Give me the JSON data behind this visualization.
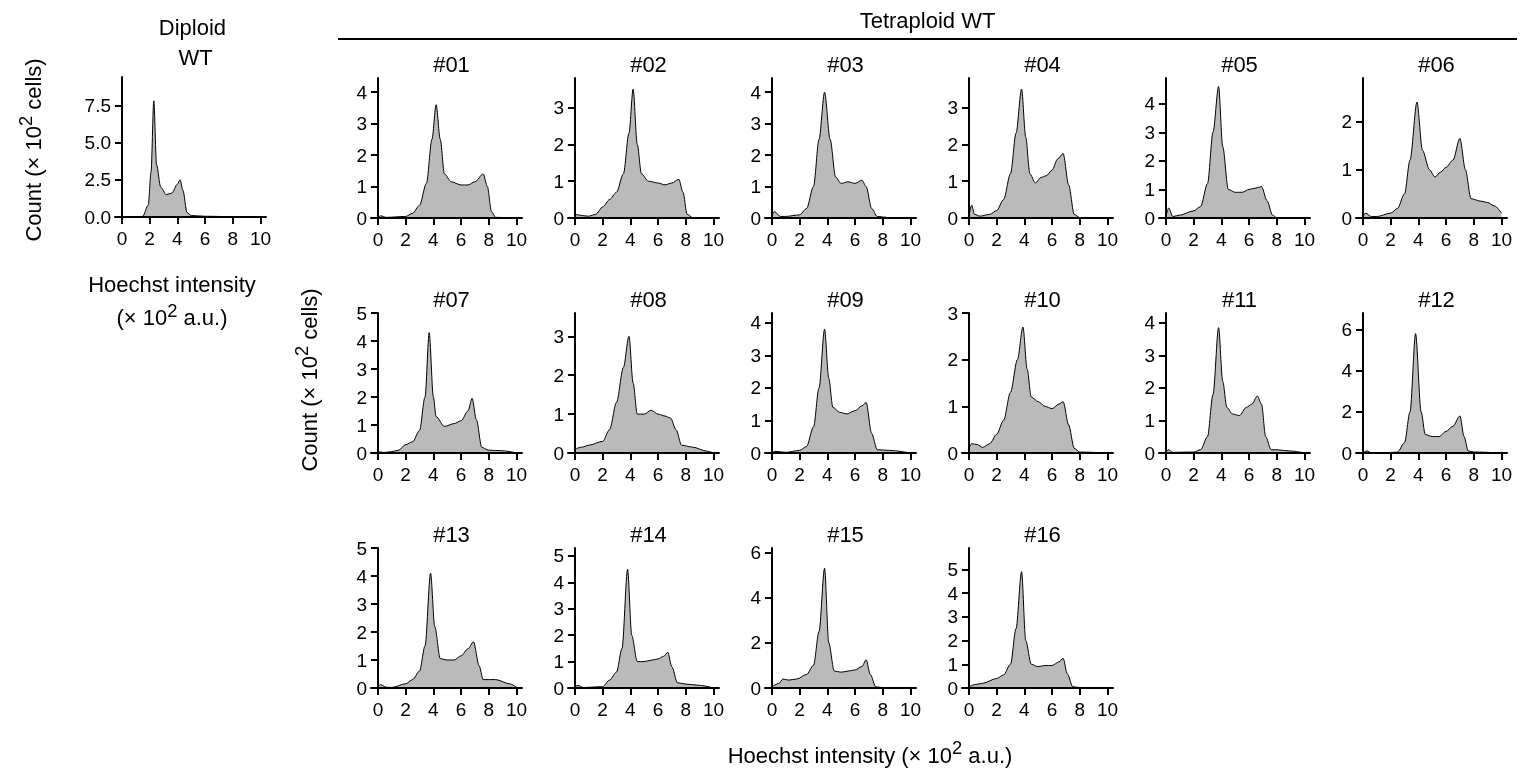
{
  "chart_data": [
    {
      "type": "area",
      "title": "Diploid WT",
      "xlabel": "Hoechst intensity (× 10$^{2}$ a.u.)",
      "ylabel": "Count (× 10$^{2}$ cells)",
      "color": "#000000",
      "xlim": [
        -0.5,
        10.4
      ],
      "xticks": [
        0,
        2,
        4,
        6,
        8,
        10
      ],
      "ylim": [
        0,
        9.4
      ],
      "yticks": [
        {
          "value": 0,
          "label": "0.0"
        },
        {
          "value": 2.5,
          "label": "2.5"
        },
        {
          "value": 5,
          "label": "5.0"
        },
        {
          "value": 7.5,
          "label": "7.5"
        }
      ],
      "x": [
        0,
        1,
        1.5,
        1.9,
        2.1,
        2.3,
        2.5,
        2.8,
        3.2,
        3.6,
        4.0,
        4.2,
        4.4,
        4.7,
        5,
        6,
        8,
        10
      ],
      "values": [
        0,
        0,
        0.05,
        0.8,
        3,
        7.8,
        3.5,
        2,
        1.5,
        1.6,
        2.2,
        2.5,
        1.8,
        0.3,
        0.1,
        0.05,
        0.02,
        0
      ]
    },
    {
      "type": "area",
      "title": "#01",
      "annotations": [
        "Tetraploid WT"
      ],
      "color": "#000000",
      "xlim": [
        -0.5,
        10.4
      ],
      "xticks": [
        0,
        2,
        4,
        6,
        8,
        10
      ],
      "ylim": [
        0,
        4.45
      ],
      "yticks": [
        0,
        1,
        2,
        3,
        4
      ],
      "x": [
        0,
        0.2,
        0.6,
        2,
        2.5,
        3,
        3.5,
        3.9,
        4.2,
        4.5,
        4.8,
        5.3,
        6,
        6.5,
        7,
        7.6,
        7.9,
        8.2,
        8.5,
        10
      ],
      "values": [
        0,
        0.07,
        0.02,
        0.05,
        0.15,
        0.4,
        1.1,
        2.5,
        3.6,
        2.5,
        1.4,
        1.15,
        1.05,
        1.05,
        1.15,
        1.4,
        1.0,
        0.2,
        0.02,
        0
      ]
    },
    {
      "type": "area",
      "title": "#02",
      "color": "#000000",
      "xlim": [
        -0.5,
        10.4
      ],
      "xticks": [
        0,
        2,
        4,
        6,
        8,
        10
      ],
      "ylim": [
        0,
        3.8
      ],
      "yticks": [
        0,
        1,
        2,
        3
      ],
      "x": [
        0,
        1,
        1.5,
        2,
        2.5,
        3,
        3.5,
        3.9,
        4.2,
        4.5,
        4.8,
        5.3,
        6,
        6.5,
        7,
        7.5,
        7.8,
        8.1,
        8.5,
        10
      ],
      "values": [
        0.1,
        0.05,
        0.1,
        0.3,
        0.5,
        0.7,
        1.2,
        2.3,
        3.5,
        2,
        1.2,
        1.0,
        0.95,
        0.9,
        0.95,
        1.05,
        0.7,
        0.1,
        0.01,
        0
      ]
    },
    {
      "type": "area",
      "title": "#03",
      "color": "#000000",
      "xlim": [
        -0.5,
        10.4
      ],
      "xticks": [
        0,
        2,
        4,
        6,
        8,
        10
      ],
      "ylim": [
        0,
        4.45
      ],
      "yticks": [
        0,
        1,
        2,
        3,
        4
      ],
      "x": [
        0,
        0.2,
        0.6,
        1,
        2,
        2.5,
        3,
        3.4,
        3.8,
        4.2,
        4.6,
        5,
        5.5,
        6,
        6.5,
        6.8,
        7.2,
        7.6,
        8.5,
        10
      ],
      "values": [
        0.1,
        0.2,
        0.05,
        0.05,
        0.1,
        0.3,
        1,
        2.5,
        4.0,
        2.5,
        1.3,
        1.1,
        1.15,
        1.1,
        1.2,
        1.0,
        0.3,
        0.05,
        0.01,
        0
      ]
    },
    {
      "type": "area",
      "title": "#04",
      "color": "#000000",
      "xlim": [
        -0.5,
        10.4
      ],
      "xticks": [
        0,
        2,
        4,
        6,
        8,
        10
      ],
      "ylim": [
        0,
        3.8
      ],
      "yticks": [
        0,
        1,
        2,
        3
      ],
      "x": [
        0,
        0.2,
        0.4,
        0.8,
        1.5,
        2,
        2.5,
        3,
        3.4,
        3.8,
        4.1,
        4.4,
        4.8,
        5.2,
        5.6,
        6,
        6.4,
        6.8,
        7.2,
        7.6,
        8,
        10
      ],
      "values": [
        0.05,
        0.35,
        0.1,
        0.05,
        0.1,
        0.2,
        0.5,
        1.2,
        2.3,
        3.5,
        2.2,
        1.2,
        0.95,
        1.1,
        1.15,
        1.3,
        1.6,
        1.75,
        0.9,
        0.1,
        0.01,
        0
      ]
    },
    {
      "type": "area",
      "title": "#05",
      "color": "#000000",
      "xlim": [
        -0.5,
        10.4
      ],
      "xticks": [
        0,
        2,
        4,
        6,
        8,
        10
      ],
      "ylim": [
        0,
        4.9
      ],
      "yticks": [
        0,
        1,
        2,
        3,
        4
      ],
      "x": [
        0,
        0.2,
        0.5,
        1,
        2,
        2.5,
        3,
        3.4,
        3.8,
        4.1,
        4.5,
        5,
        5.5,
        6,
        6.5,
        6.9,
        7.3,
        7.7,
        8,
        10
      ],
      "values": [
        0.05,
        0.35,
        0.05,
        0.1,
        0.25,
        0.4,
        1.2,
        3,
        4.6,
        2.5,
        1,
        0.9,
        0.9,
        1.0,
        1.05,
        1.1,
        0.6,
        0.1,
        0.01,
        0
      ]
    },
    {
      "type": "area",
      "title": "#06",
      "color": "#000000",
      "xlim": [
        -0.5,
        10.4
      ],
      "xticks": [
        0,
        2,
        4,
        6,
        8,
        10
      ],
      "ylim": [
        0,
        2.9
      ],
      "yticks": [
        0,
        1,
        2
      ],
      "x": [
        0,
        0.2,
        0.6,
        1,
        2,
        2.5,
        3,
        3.4,
        3.9,
        4.3,
        4.8,
        5.2,
        5.6,
        6,
        6.5,
        7,
        7.4,
        7.8,
        8.5,
        9,
        9.5,
        10
      ],
      "values": [
        0.05,
        0.1,
        0.03,
        0.03,
        0.1,
        0.2,
        0.5,
        1.2,
        2.4,
        1.4,
        1.0,
        0.85,
        0.95,
        1.05,
        1.2,
        1.65,
        1.0,
        0.4,
        0.35,
        0.32,
        0.25,
        0.1
      ]
    },
    {
      "type": "area",
      "title": "#07",
      "ylabel": "Count (× 10$^{2}$ cells)",
      "color": "#000000",
      "xlim": [
        -0.5,
        10.4
      ],
      "xticks": [
        0,
        2,
        4,
        6,
        8,
        10
      ],
      "ylim": [
        0,
        5
      ],
      "yticks": [
        0,
        1,
        2,
        3,
        4,
        5
      ],
      "x": [
        0,
        0.5,
        1,
        1.5,
        2,
        2.5,
        3,
        3.4,
        3.7,
        4,
        4.2,
        4.8,
        5.5,
        6,
        6.5,
        6.8,
        7.1,
        7.5,
        8,
        9,
        10
      ],
      "values": [
        0.05,
        0.02,
        0.05,
        0.1,
        0.3,
        0.4,
        0.8,
        2,
        4.3,
        2.0,
        1.3,
        0.95,
        1.05,
        1.15,
        1.5,
        1.95,
        1.2,
        0.2,
        0.1,
        0.08,
        0
      ]
    },
    {
      "type": "area",
      "title": "#08",
      "color": "#000000",
      "xlim": [
        -0.5,
        10.4
      ],
      "xticks": [
        0,
        2,
        4,
        6,
        8,
        10
      ],
      "ylim": [
        0,
        3.6
      ],
      "yticks": [
        0,
        1,
        2,
        3
      ],
      "x": [
        0,
        0.5,
        1,
        2,
        2.5,
        3,
        3.5,
        3.9,
        4.2,
        4.5,
        5,
        5.5,
        6,
        6.5,
        6.9,
        7.3,
        7.7,
        8.5,
        9.5,
        10
      ],
      "values": [
        0.1,
        0.15,
        0.2,
        0.3,
        0.6,
        1.3,
        2.2,
        3.0,
        1.8,
        1.0,
        1.0,
        1.1,
        1.0,
        0.95,
        0.9,
        0.6,
        0.2,
        0.15,
        0.05,
        0
      ]
    },
    {
      "type": "area",
      "title": "#09",
      "color": "#000000",
      "xlim": [
        -0.5,
        10.4
      ],
      "xticks": [
        0,
        2,
        4,
        6,
        8,
        10
      ],
      "ylim": [
        0,
        4.3
      ],
      "yticks": [
        0,
        1,
        2,
        3,
        4
      ],
      "x": [
        0,
        0.3,
        1,
        2,
        2.5,
        3,
        3.4,
        3.8,
        4.1,
        4.4,
        4.9,
        5.4,
        6,
        6.5,
        6.8,
        7.2,
        7.6,
        8.5,
        10
      ],
      "values": [
        0.03,
        0.05,
        0.02,
        0.08,
        0.2,
        0.8,
        2,
        3.8,
        2.3,
        1.4,
        1.25,
        1.2,
        1.3,
        1.45,
        1.55,
        0.6,
        0.1,
        0.08,
        0
      ]
    },
    {
      "type": "area",
      "title": "#10",
      "color": "#000000",
      "xlim": [
        -0.5,
        10.4
      ],
      "xticks": [
        0,
        2,
        4,
        6,
        8,
        10
      ],
      "ylim": [
        0,
        3
      ],
      "yticks": [
        0,
        1,
        2,
        3
      ],
      "x": [
        0,
        0.2,
        0.6,
        1,
        1.5,
        2,
        2.5,
        3,
        3.5,
        3.9,
        4.2,
        4.5,
        5,
        5.5,
        6,
        6.5,
        6.8,
        7.2,
        7.6,
        8,
        10
      ],
      "values": [
        0.1,
        0.2,
        0.18,
        0.12,
        0.2,
        0.4,
        0.7,
        1.3,
        2.0,
        2.7,
        1.8,
        1.2,
        1.1,
        1.0,
        0.95,
        1.05,
        1.1,
        0.6,
        0.1,
        0.02,
        0
      ]
    },
    {
      "type": "area",
      "title": "#11",
      "color": "#000000",
      "xlim": [
        -0.5,
        10.4
      ],
      "xticks": [
        0,
        2,
        4,
        6,
        8,
        10
      ],
      "ylim": [
        0,
        4.3
      ],
      "yticks": [
        0,
        1,
        2,
        3,
        4
      ],
      "x": [
        0,
        0.2,
        0.5,
        2,
        2.5,
        3,
        3.4,
        3.8,
        4.1,
        4.4,
        4.8,
        5.3,
        5.8,
        6.2,
        6.6,
        6.9,
        7.2,
        7.6,
        8,
        9,
        10
      ],
      "values": [
        0.03,
        0.1,
        0.02,
        0.03,
        0.1,
        0.5,
        1.8,
        3.85,
        2.2,
        1.4,
        1.2,
        1.15,
        1.4,
        1.5,
        1.75,
        1.5,
        0.5,
        0.1,
        0.1,
        0.06,
        0
      ]
    },
    {
      "type": "area",
      "title": "#12",
      "color": "#000000",
      "xlim": [
        -0.5,
        10.4
      ],
      "xticks": [
        0,
        2,
        4,
        6,
        8,
        10
      ],
      "ylim": [
        0,
        6.8
      ],
      "yticks": [
        0,
        2,
        4,
        6
      ],
      "x": [
        0,
        0.3,
        0.6,
        2,
        2.5,
        3,
        3.4,
        3.8,
        4.2,
        4.5,
        5,
        5.5,
        6,
        6.5,
        7,
        7.3,
        7.6,
        8,
        10
      ],
      "values": [
        0.02,
        0.1,
        0.01,
        0.02,
        0.05,
        0.5,
        2,
        5.8,
        2,
        0.9,
        0.8,
        0.8,
        1.05,
        1.3,
        1.8,
        0.8,
        0.1,
        0.05,
        0
      ]
    },
    {
      "type": "area",
      "title": "#13",
      "color": "#000000",
      "xlim": [
        -0.5,
        10.4
      ],
      "xticks": [
        0,
        2,
        4,
        6,
        8,
        10
      ],
      "ylim": [
        0,
        5
      ],
      "yticks": [
        0,
        1,
        2,
        3,
        4,
        5
      ],
      "x": [
        0,
        0.2,
        0.6,
        1,
        2,
        2.5,
        3,
        3.4,
        3.8,
        4.1,
        4.5,
        5,
        5.5,
        6,
        6.5,
        6.9,
        7.3,
        7.6,
        8.5,
        9.5,
        10
      ],
      "values": [
        0.05,
        0.12,
        0.03,
        0.02,
        0.15,
        0.3,
        0.6,
        1.5,
        4.1,
        2.2,
        1.05,
        1.0,
        1.0,
        1.15,
        1.4,
        1.65,
        0.8,
        0.3,
        0.3,
        0.15,
        0.03
      ]
    },
    {
      "type": "area",
      "title": "#14",
      "color": "#000000",
      "xlim": [
        -0.5,
        10.4
      ],
      "xticks": [
        0,
        2,
        4,
        6,
        8,
        10
      ],
      "ylim": [
        0,
        5.3
      ],
      "yticks": [
        0,
        1,
        2,
        3,
        4,
        5
      ],
      "x": [
        0,
        0.2,
        0.6,
        2,
        2.5,
        3,
        3.4,
        3.8,
        4.1,
        4.5,
        5,
        5.5,
        6,
        6.4,
        6.7,
        7,
        7.4,
        8,
        9,
        10
      ],
      "values": [
        0.05,
        0.1,
        0.02,
        0.05,
        0.3,
        0.6,
        1.5,
        4.5,
        2,
        1.0,
        1.0,
        1.05,
        1.1,
        1.2,
        1.35,
        0.8,
        0.2,
        0.15,
        0.1,
        0
      ]
    },
    {
      "type": "area",
      "title": "#15",
      "xlabel": "Hoechst intensity (× 10$^{2}$ a.u.)",
      "color": "#000000",
      "xlim": [
        -0.5,
        10.4
      ],
      "xticks": [
        0,
        2,
        4,
        6,
        8,
        10
      ],
      "ylim": [
        0,
        6.2
      ],
      "yticks": [
        0,
        2,
        4,
        6
      ],
      "x": [
        0,
        0.5,
        0.8,
        1.2,
        1.8,
        2.5,
        3,
        3.4,
        3.8,
        4.1,
        4.5,
        5,
        5.5,
        6,
        6.5,
        6.8,
        7.1,
        7.5,
        8,
        10
      ],
      "values": [
        0.05,
        0.2,
        0.4,
        0.35,
        0.4,
        0.6,
        1.0,
        2.5,
        5.3,
        2,
        0.75,
        0.7,
        0.75,
        0.8,
        0.95,
        1.25,
        0.6,
        0.05,
        0.02,
        0
      ]
    },
    {
      "type": "area",
      "title": "#16",
      "color": "#000000",
      "xlim": [
        -0.5,
        10.4
      ],
      "xticks": [
        0,
        2,
        4,
        6,
        8,
        10
      ],
      "ylim": [
        0,
        5.9
      ],
      "yticks": [
        0,
        1,
        2,
        3,
        4,
        5
      ],
      "x": [
        0,
        0.5,
        1,
        2,
        2.5,
        3,
        3.4,
        3.8,
        4.1,
        4.5,
        5,
        5.5,
        6,
        6.5,
        6.8,
        7.1,
        7.5,
        8,
        10
      ],
      "values": [
        0.05,
        0.15,
        0.2,
        0.4,
        0.55,
        1.0,
        2.5,
        4.9,
        2,
        1.0,
        0.9,
        0.95,
        0.95,
        1.1,
        1.25,
        0.6,
        0.05,
        0.02,
        0
      ]
    }
  ]
}
